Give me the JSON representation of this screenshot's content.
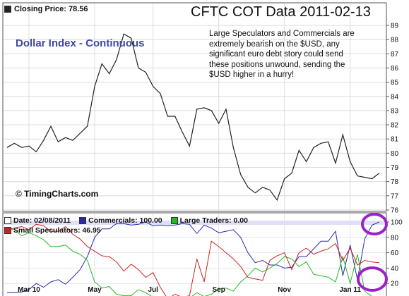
{
  "price_panel": {
    "legend_label": "Closing Price: 78.56",
    "title": "CFTC COT Data 2011-02-13",
    "series_title": "Dollar Index - Continuous",
    "annotation": "Large Speculators and Commercials are extremely bearish on the $USD, any significant euro debt story could send these positions unwound, sending the $USD higher in a hurry!",
    "credit": "© TimingCharts.com"
  },
  "cot_panel": {
    "date_label": "Date: 02/08/2011",
    "commercials_label": "Commercials: 100.00",
    "large_traders_label": "Large Traders: 0.00",
    "small_specs_label": "Small Speculators: 46.95"
  },
  "colors": {
    "price_line": "#222222",
    "commercials": "#2a2aa8",
    "large_traders": "#22bb22",
    "small_specs": "#cc2222",
    "highlight_circle": "#9a22c8",
    "band": "#dde0f6"
  },
  "chart_data": [
    {
      "type": "line",
      "title": "Dollar Index - Continuous",
      "xlabel": "",
      "ylabel": "",
      "ylim": [
        75.5,
        89.5
      ],
      "yticks": [
        76,
        77,
        78,
        79,
        80,
        81,
        82,
        83,
        84,
        85,
        86,
        87,
        88,
        89
      ],
      "xtick_labels": [
        "Mar 10",
        "May",
        "Jul",
        "Sep",
        "Nov",
        "Jan 11"
      ],
      "xtick_index": [
        3,
        12,
        20,
        29,
        38,
        47
      ],
      "grid": true,
      "series": [
        {
          "name": "Closing Price",
          "values": [
            80.4,
            80.7,
            80.4,
            80.5,
            80.1,
            80.9,
            81.9,
            80.8,
            81.1,
            80.9,
            81.4,
            81.9,
            84.7,
            86.3,
            85.6,
            86.6,
            88.4,
            88.1,
            86.0,
            85.7,
            84.7,
            84.2,
            82.6,
            82.6,
            81.5,
            80.5,
            83.1,
            83.2,
            83.0,
            82.1,
            83.1,
            80.4,
            78.5,
            77.6,
            77.2,
            77.6,
            77.4,
            76.7,
            78.2,
            78.6,
            80.2,
            79.4,
            80.4,
            80.7,
            80.8,
            79.3,
            81.3,
            79.4,
            78.4,
            78.3,
            78.2,
            78.6
          ]
        }
      ]
    },
    {
      "type": "line",
      "title": "",
      "xlabel": "",
      "ylabel": "",
      "ylim": [
        0,
        100
      ],
      "yticks": [
        0,
        20,
        40,
        60,
        80,
        100
      ],
      "xtick_labels": [
        "Mar 10",
        "May",
        "Jul",
        "Sep",
        "Nov",
        "Jan 11"
      ],
      "xtick_index": [
        3,
        12,
        20,
        29,
        38,
        47
      ],
      "band": [
        0,
        100
      ],
      "series": [
        {
          "name": "Commercials",
          "values": [
            8,
            8,
            9,
            12,
            20,
            15,
            22,
            25,
            19,
            28,
            38,
            55,
            80,
            91,
            91,
            98,
            98,
            96,
            97,
            100,
            95,
            96,
            95,
            96,
            98,
            97,
            85,
            96,
            92,
            86,
            88,
            90,
            80,
            60,
            47,
            50,
            44,
            44,
            40,
            41,
            55,
            55,
            65,
            75,
            75,
            88,
            30,
            70,
            25,
            78,
            96,
            100
          ]
        },
        {
          "name": "Large Traders",
          "values": [
            90,
            90,
            82,
            86,
            82,
            77,
            68,
            68,
            70,
            62,
            58,
            50,
            22,
            14,
            16,
            6,
            4,
            4,
            12,
            8,
            2,
            0,
            0,
            2,
            0,
            1,
            8,
            3,
            6,
            13,
            14,
            10,
            22,
            30,
            40,
            35,
            40,
            46,
            55,
            52,
            42,
            48,
            32,
            30,
            28,
            22,
            55,
            20,
            58,
            10,
            3,
            0
          ]
        },
        {
          "name": "Small Speculators",
          "values": [
            90,
            92,
            94,
            90,
            97,
            95,
            88,
            88,
            94,
            84,
            78,
            68,
            62,
            56,
            55,
            48,
            36,
            45,
            38,
            28,
            34,
            15,
            0,
            6,
            2,
            4,
            52,
            22,
            75,
            68,
            60,
            52,
            42,
            28,
            26,
            24,
            50,
            56,
            60,
            38,
            60,
            66,
            58,
            62,
            65,
            72,
            50,
            66,
            44,
            50,
            48,
            46.95
          ]
        }
      ]
    }
  ]
}
